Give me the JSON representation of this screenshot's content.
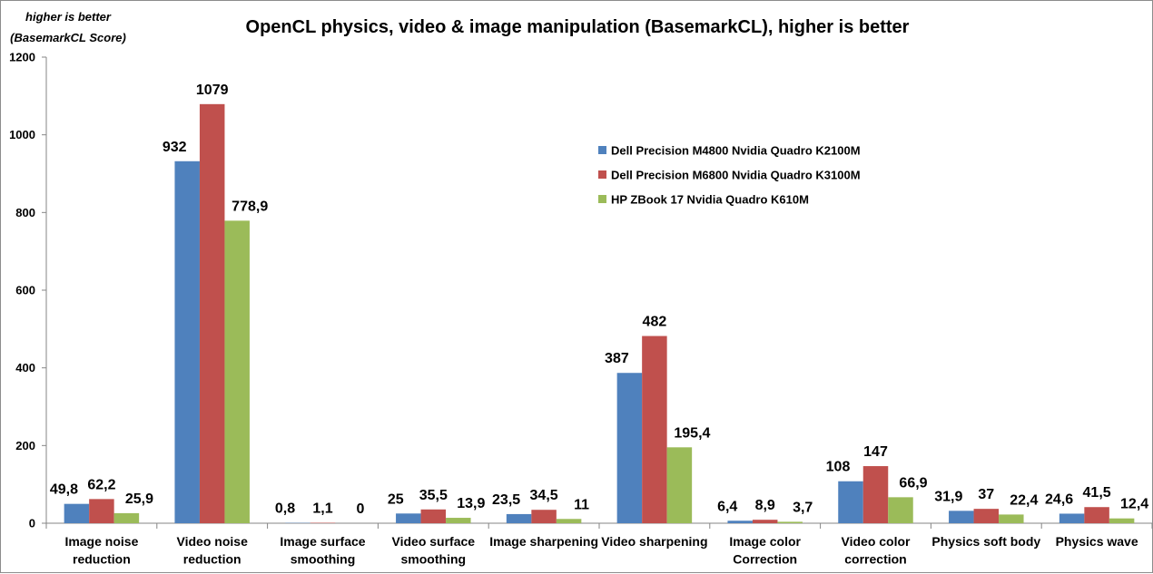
{
  "chart_data": {
    "type": "bar",
    "title": "OpenCL physics, video & image manipulation (BasemarkCL), higher is better",
    "ylabel_lines": [
      "higher is better",
      "(BasemarkCL Score)"
    ],
    "xlabel": "",
    "ylim": [
      0,
      1200
    ],
    "yticks": [
      0,
      200,
      400,
      600,
      800,
      1000,
      1200
    ],
    "grid": false,
    "legend_position": "right-middle",
    "categories": [
      [
        "Image noise",
        "reduction"
      ],
      [
        "Video noise",
        "reduction"
      ],
      [
        "Image surface",
        "smoothing"
      ],
      [
        "Video surface",
        "smoothing"
      ],
      [
        "Image sharpening"
      ],
      [
        "Video sharpening"
      ],
      [
        "Image color",
        "Correction"
      ],
      [
        "Video color",
        "correction"
      ],
      [
        "Physics soft body"
      ],
      [
        "Physics wave"
      ]
    ],
    "series": [
      {
        "name": "Dell Precision M4800 Nvidia Quadro K2100M",
        "color": "#4F81BD",
        "values": [
          49.8,
          932,
          0.8,
          25,
          23.5,
          387,
          6.4,
          108,
          31.9,
          24.6
        ],
        "labels": [
          "49,8",
          "932",
          "0,8",
          "25",
          "23,5",
          "387",
          "6,4",
          "108",
          "31,9",
          "24,6"
        ]
      },
      {
        "name": "Dell Precision M6800 Nvidia Quadro K3100M",
        "color": "#C0504D",
        "values": [
          62.2,
          1079,
          1.1,
          35.5,
          34.5,
          482,
          8.9,
          147,
          37,
          41.5
        ],
        "labels": [
          "62,2",
          "1079",
          "1,1",
          "35,5",
          "34,5",
          "482",
          "8,9",
          "147",
          "37",
          "41,5"
        ]
      },
      {
        "name": "HP ZBook 17 Nvidia Quadro K610M",
        "color": "#9BBB59",
        "values": [
          25.9,
          778.9,
          0,
          13.9,
          11,
          195.4,
          3.7,
          66.9,
          22.4,
          12.4
        ],
        "labels": [
          "25,9",
          "778,9",
          "0",
          "13,9",
          "11",
          "195,4",
          "3,7",
          "66,9",
          "22,4",
          "12,4"
        ]
      }
    ]
  }
}
